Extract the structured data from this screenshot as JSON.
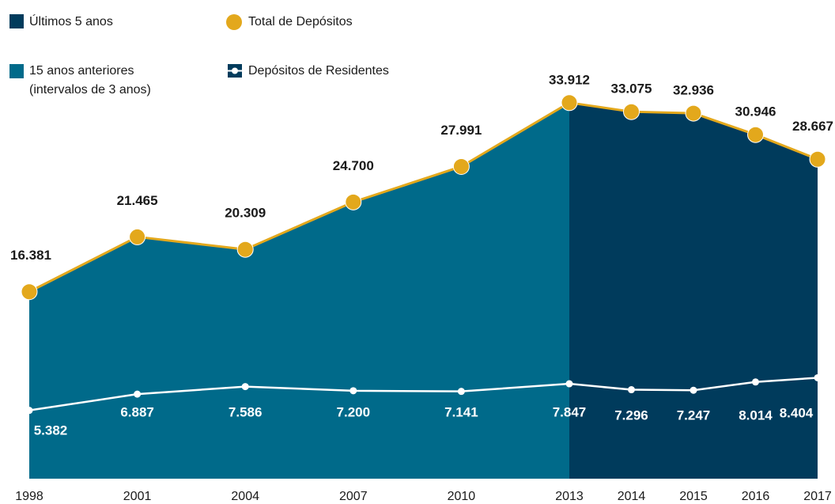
{
  "chart_data": {
    "type": "line",
    "categories": [
      "1998",
      "2001",
      "2004",
      "2007",
      "2010",
      "2013",
      "2014",
      "2015",
      "2016",
      "2017"
    ],
    "periods": [
      {
        "name": [
          "Últimos 5 anos"
        ],
        "color": "#003b5c"
      },
      {
        "name": [
          "15 anos anteriores",
          "(intervalos de 3 anos)"
        ],
        "color": "#006a8a"
      }
    ],
    "series": [
      {
        "name": "Total de Depósitos",
        "color": "#e3a81c",
        "values": [
          16381,
          21465,
          20309,
          24700,
          27991,
          33912,
          33075,
          32936,
          30946,
          28667
        ],
        "value_labels": [
          "16.381",
          "21.465",
          "20.309",
          "24.700",
          "27.991",
          "33.912",
          "33.075",
          "32.936",
          "30.946",
          "28.667"
        ]
      },
      {
        "name": "Depósitos de Residentes",
        "color": "#ffffff",
        "values": [
          5382,
          6887,
          7586,
          7200,
          7141,
          7847,
          7296,
          7247,
          8014,
          8404
        ],
        "value_labels": [
          "5.382",
          "6.887",
          "7.586",
          "7.200",
          "7.141",
          "7.847",
          "7.296",
          "7.247",
          "8.014",
          "8.404"
        ]
      }
    ]
  }
}
